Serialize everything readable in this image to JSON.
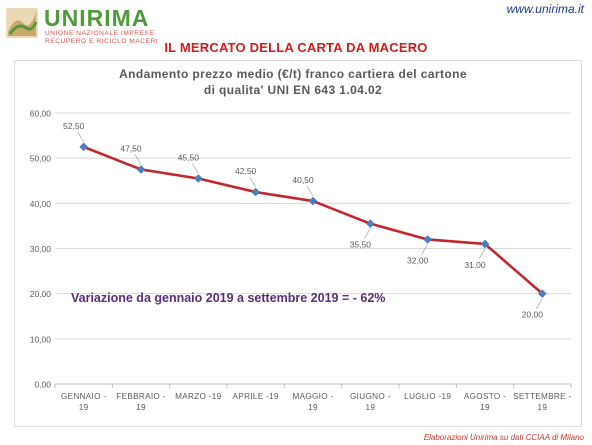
{
  "header": {
    "logo_name": "UNIRIMA",
    "logo_sub1": "UNIONE NAZIONALE IMPRESE",
    "logo_sub2": "RECUPERO E RICICLO MACERI",
    "site_url": "www.unirima.it",
    "headline": "IL MERCATO DELLA CARTA DA MACERO"
  },
  "footer": {
    "note": "Elaborazioni Unirima su dati CCIAA di Milano"
  },
  "colors": {
    "line": "#c0282d",
    "marker": "#4a7fc1",
    "annotation": "#5b2d7a",
    "axis_text": "#595959",
    "title_text": "#595959",
    "grid": "#d9d9d9",
    "logo_green": "#4f9a3a",
    "headline_red": "#d01c1c"
  },
  "chart_data": {
    "type": "line",
    "title_line1": "Andamento prezzo medio (€/t) franco cartiera del cartone",
    "title_line2": "di qualita' UNI EN 643 1.04.02",
    "categories": [
      [
        "GENNAIO",
        "19"
      ],
      [
        "FEBBRAIO",
        "19"
      ],
      [
        "MARZO -19"
      ],
      [
        "APRILE -19"
      ],
      [
        "MAGGIO",
        "19"
      ],
      [
        "GIUGNO",
        "19"
      ],
      [
        "LUGLIO -19"
      ],
      [
        "AGOSTO",
        "19"
      ],
      [
        "SETTEMBRE",
        "19"
      ]
    ],
    "values": [
      52.5,
      47.5,
      45.5,
      42.5,
      40.5,
      35.5,
      32.0,
      31.0,
      20.0
    ],
    "value_labels": [
      "52,50",
      "47,50",
      "45,50",
      "42,50",
      "40,50",
      "35,50",
      "32,00",
      "31,00",
      "20,00"
    ],
    "label_positions": [
      "above",
      "above",
      "above",
      "above",
      "above",
      "below",
      "below",
      "below",
      "below"
    ],
    "y_ticks": [
      "0,00",
      "10,00",
      "20,00",
      "30,00",
      "40,00",
      "50,00",
      "60,00"
    ],
    "ylim": [
      0,
      60
    ],
    "grid": true,
    "annotation": "Variazione da gennaio 2019 a settembre 2019 = - 62%"
  }
}
